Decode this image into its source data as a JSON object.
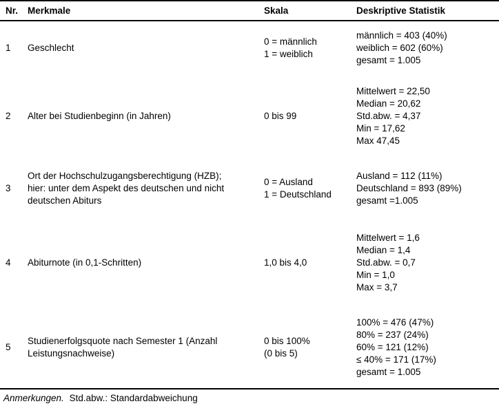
{
  "table": {
    "columns": [
      "Nr.",
      "Merkmale",
      "Skala",
      "Deskriptive Statistik"
    ],
    "rows": [
      {
        "nr": "1",
        "merkmale": [
          "Geschlecht"
        ],
        "skala": [
          "0 = männlich",
          "1 = weiblich"
        ],
        "statistik": [
          "männlich = 403 (40%)",
          "weiblich = 602 (60%)",
          "gesamt = 1.005"
        ]
      },
      {
        "nr": "2",
        "merkmale": [
          "Alter bei Studienbeginn (in Jahren)"
        ],
        "skala": [
          "0 bis 99"
        ],
        "statistik": [
          "Mittelwert = 22,50",
          "Median = 20,62",
          "Std.abw. = 4,37",
          "Min = 17,62",
          "Max 47,45"
        ]
      },
      {
        "nr": "3",
        "merkmale": [
          "Ort der Hochschulzugangsberechtigung (HZB);",
          "hier: unter dem Aspekt des deutschen und nicht",
          "deutschen Abiturs"
        ],
        "skala": [
          "0 = Ausland",
          "1 = Deutschland"
        ],
        "statistik": [
          "Ausland = 112 (11%)",
          "Deutschland = 893 (89%)",
          "gesamt =1.005"
        ]
      },
      {
        "nr": "4",
        "merkmale": [
          "Abiturnote (in 0,1-Schritten)"
        ],
        "skala": [
          "1,0 bis 4,0"
        ],
        "statistik": [
          "Mittelwert = 1,6",
          "Median = 1,4",
          "Std.abw. = 0,7",
          "Min = 1,0",
          "Max = 3,7"
        ]
      },
      {
        "nr": "5",
        "merkmale": [
          "Studienerfolgsquote nach Semester 1 (Anzahl",
          "Leistungsnachweise)"
        ],
        "skala": [
          "0 bis 100%",
          "(0 bis 5)"
        ],
        "statistik": [
          "100% = 476 (47%)",
          "80% = 237 (24%)",
          "60% = 121 (12%)",
          "≤ 40% = 171 (17%)",
          "gesamt = 1.005"
        ]
      }
    ],
    "note": {
      "label": "Anmerkungen.",
      "text": "Std.abw.: Standardabweichung"
    }
  },
  "colors": {
    "text": "#000000",
    "background": "#ffffff",
    "rule": "#000000"
  }
}
